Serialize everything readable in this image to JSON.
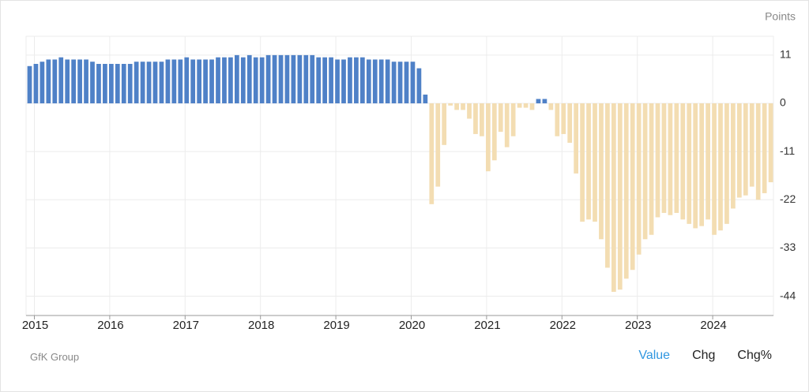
{
  "chart_data": {
    "type": "bar",
    "y_label": "Points",
    "categories": [
      "2015",
      null,
      null,
      null,
      null,
      null,
      null,
      null,
      null,
      null,
      null,
      null,
      "2016",
      null,
      null,
      null,
      null,
      null,
      null,
      null,
      null,
      null,
      null,
      null,
      "2017",
      null,
      null,
      null,
      null,
      null,
      null,
      null,
      null,
      null,
      null,
      null,
      "2018",
      null,
      null,
      null,
      null,
      null,
      null,
      null,
      null,
      null,
      null,
      null,
      "2019",
      null,
      null,
      null,
      null,
      null,
      null,
      null,
      null,
      null,
      null,
      null,
      "2020",
      null,
      null,
      null,
      null,
      null,
      null,
      null,
      null,
      null,
      null,
      null,
      "2021",
      null,
      null,
      null,
      null,
      null,
      null,
      null,
      null,
      null,
      null,
      null,
      "2022",
      null,
      null,
      null,
      null,
      null,
      null,
      null,
      null,
      null,
      null,
      null,
      "2023",
      null,
      null,
      null,
      null,
      null,
      null,
      null,
      null,
      null,
      null,
      null,
      "2024",
      null,
      null,
      null,
      null,
      null,
      null,
      null,
      null,
      null,
      null
    ],
    "values": [
      8.5,
      9,
      9.5,
      10,
      10,
      10.5,
      10,
      10,
      10,
      10,
      9.5,
      9,
      9,
      9,
      9,
      9,
      9,
      9.5,
      9.5,
      9.5,
      9.5,
      9.5,
      10,
      10,
      10,
      10.5,
      10,
      10,
      10,
      10,
      10.5,
      10.5,
      10.5,
      11,
      10.5,
      11,
      10.5,
      10.5,
      11,
      11,
      11,
      11,
      11,
      11,
      11,
      11,
      10.5,
      10.5,
      10.5,
      10,
      10,
      10.5,
      10.5,
      10.5,
      10,
      10,
      10,
      10,
      9.5,
      9.5,
      9.5,
      9.5,
      8,
      2,
      -23,
      -19,
      -9.5,
      -0.5,
      -1.5,
      -1.5,
      -3.5,
      -7,
      -7.5,
      -15.5,
      -13,
      -6.5,
      -10,
      -7.5,
      -1,
      -1,
      -1.5,
      1,
      1,
      -1.5,
      -7.5,
      -7,
      -9,
      -16,
      -27,
      -26.5,
      -27,
      -31,
      -37.5,
      -43,
      -42.5,
      -40,
      -38,
      -34.5,
      -31,
      -30,
      -26,
      -25,
      -25.5,
      -25,
      -26.5,
      -27.5,
      -28.5,
      -28,
      -26.5,
      -30,
      -29,
      -27.5,
      -24,
      -21.5,
      -21,
      -19,
      -22,
      -20.5,
      -18
    ],
    "positive_color": "#4f81c7",
    "negative_color": "#f3ddb2",
    "ylim": [
      -48.4,
      15.3
    ],
    "yticks": [
      11,
      0,
      -11,
      -22,
      -33,
      -44
    ],
    "grid": true
  },
  "source": "GfK Group",
  "tabs": [
    "Value",
    "Chg",
    "Chg%"
  ],
  "active_tab": 0
}
